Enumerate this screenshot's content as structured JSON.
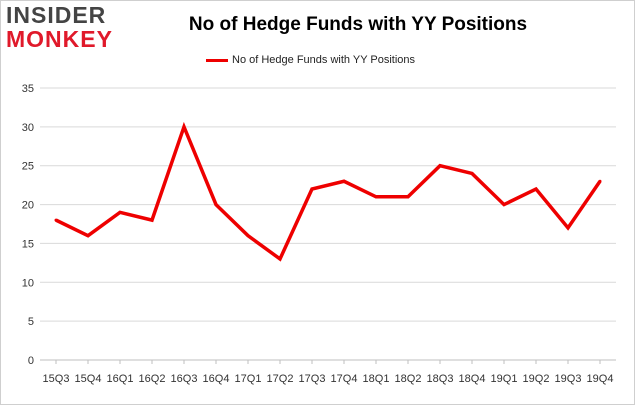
{
  "logo": {
    "line1": "INSIDER",
    "line2": "MONKEY"
  },
  "chart_data": {
    "type": "line",
    "title": "No of Hedge Funds with YY Positions",
    "categories": [
      "15Q3",
      "15Q4",
      "16Q1",
      "16Q2",
      "16Q3",
      "16Q4",
      "17Q1",
      "17Q2",
      "17Q3",
      "17Q4",
      "18Q1",
      "18Q2",
      "18Q3",
      "18Q4",
      "19Q1",
      "19Q2",
      "19Q3",
      "19Q4"
    ],
    "series": [
      {
        "name": "No of Hedge Funds with YY Positions",
        "values": [
          18,
          16,
          19,
          18,
          30,
          20,
          16,
          13,
          22,
          23,
          21,
          21,
          25,
          24,
          20,
          22,
          17,
          23
        ],
        "color": "#ee0000"
      }
    ],
    "yticks": [
      0,
      5,
      10,
      15,
      20,
      25,
      30,
      35
    ],
    "ylim": [
      0,
      35
    ],
    "xlabel": "",
    "ylabel": "",
    "grid": "horizontal",
    "legend": "top-center"
  }
}
